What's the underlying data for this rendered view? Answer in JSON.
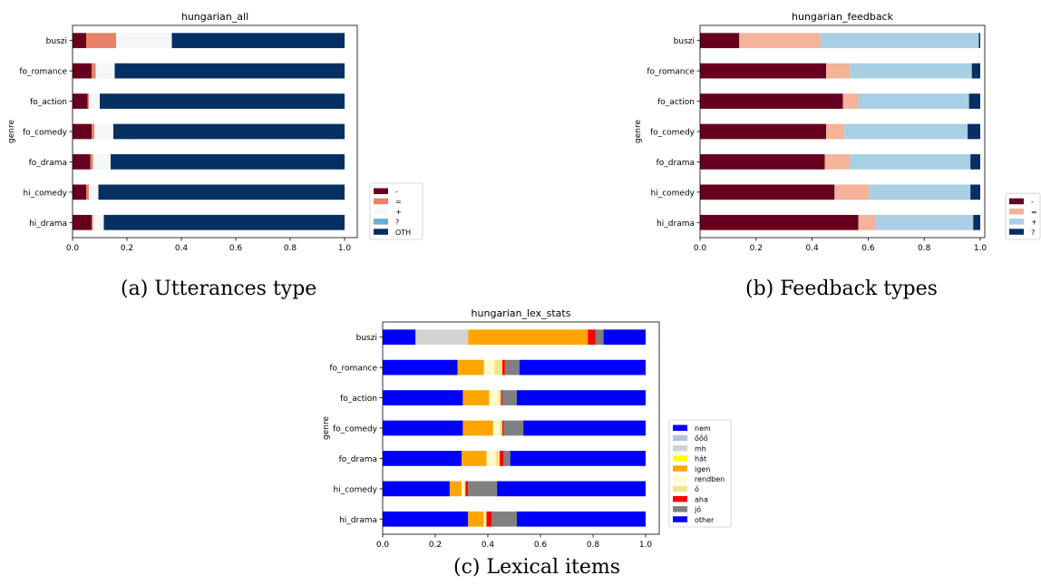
{
  "chart_data": [
    {
      "type": "bar",
      "orientation": "horizontal",
      "stacked": true,
      "title": "hungarian_all",
      "xlabel": "",
      "ylabel": "genre",
      "xlim": [
        0,
        1.0
      ],
      "xticks": [
        "0.0",
        "0.2",
        "0.4",
        "0.6",
        "0.8",
        "1.0"
      ],
      "legend_position": "outside-right-bottom",
      "grid": false,
      "categories": [
        "buszi",
        "fo_romance",
        "fo_action",
        "fo_comedy",
        "fo_drama",
        "hi_comedy",
        "hi_drama"
      ],
      "series": [
        {
          "name": "-",
          "color": "#67001f",
          "values": [
            0.05,
            0.07,
            0.055,
            0.07,
            0.065,
            0.05,
            0.07
          ]
        },
        {
          "name": "=",
          "color": "#e58268",
          "values": [
            0.11,
            0.015,
            0.005,
            0.01,
            0.01,
            0.01,
            0.005
          ]
        },
        {
          "name": "+",
          "color": "#f5f6f7",
          "values": [
            0.205,
            0.07,
            0.04,
            0.07,
            0.065,
            0.035,
            0.04
          ]
        },
        {
          "name": "?",
          "color": "#6baed6",
          "values": [
            0.0,
            0.0,
            0.0,
            0.0,
            0.0,
            0.0,
            0.0
          ]
        },
        {
          "name": "OTH",
          "color": "#053061",
          "values": [
            0.635,
            0.845,
            0.9,
            0.85,
            0.86,
            0.905,
            0.885
          ]
        }
      ],
      "caption": "(a) Utterances type"
    },
    {
      "type": "bar",
      "orientation": "horizontal",
      "stacked": true,
      "title": "hungarian_feedback",
      "xlabel": "",
      "ylabel": "genre",
      "xlim": [
        0,
        1.0
      ],
      "xticks": [
        "0.0",
        "0.2",
        "0.4",
        "0.6",
        "0.8",
        "1.0"
      ],
      "legend_position": "outside-right-bottom",
      "grid": false,
      "categories": [
        "buszi",
        "fo_romance",
        "fo_action",
        "fo_comedy",
        "fo_drama",
        "hi_comedy",
        "hi_drama"
      ],
      "series": [
        {
          "name": "-",
          "color": "#67001f",
          "values": [
            0.14,
            0.45,
            0.51,
            0.45,
            0.445,
            0.48,
            0.565
          ]
        },
        {
          "name": "=",
          "color": "#f4b39a",
          "values": [
            0.29,
            0.085,
            0.055,
            0.065,
            0.09,
            0.125,
            0.06
          ]
        },
        {
          "name": "+",
          "color": "#a8cfe3",
          "values": [
            0.565,
            0.435,
            0.395,
            0.44,
            0.43,
            0.36,
            0.35
          ]
        },
        {
          "name": "?",
          "color": "#053061",
          "values": [
            0.005,
            0.03,
            0.04,
            0.045,
            0.035,
            0.035,
            0.025
          ]
        }
      ],
      "caption": "(b) Feedback types"
    },
    {
      "type": "bar",
      "orientation": "horizontal",
      "stacked": true,
      "title": "hungarian_lex_stats",
      "xlabel": "",
      "ylabel": "genre",
      "xlim": [
        0,
        1.0
      ],
      "xticks": [
        "0.0",
        "0.2",
        "0.4",
        "0.6",
        "0.8",
        "1.0"
      ],
      "legend_position": "outside-right-bottom",
      "grid": false,
      "categories": [
        "buszi",
        "fo_romance",
        "fo_action",
        "fo_comedy",
        "fo_drama",
        "hi_comedy",
        "hi_drama"
      ],
      "series": [
        {
          "name": "nem",
          "color": "#0000ff",
          "values": [
            0.125,
            0.285,
            0.305,
            0.305,
            0.3,
            0.255,
            0.325
          ]
        },
        {
          "name": "őőő",
          "color": "#b0c4de",
          "values": [
            0.0,
            0.0,
            0.0,
            0.0,
            0.0,
            0.0,
            0.0
          ]
        },
        {
          "name": "mh",
          "color": "#d3d3d3",
          "values": [
            0.2,
            0.0,
            0.0,
            0.0,
            0.0,
            0.0,
            0.0
          ]
        },
        {
          "name": "hát",
          "color": "#ffff00",
          "values": [
            0.0,
            0.0,
            0.0,
            0.0,
            0.0,
            0.0,
            0.0
          ]
        },
        {
          "name": "igen",
          "color": "#ffa500",
          "values": [
            0.455,
            0.1,
            0.1,
            0.115,
            0.095,
            0.045,
            0.06
          ]
        },
        {
          "name": "rendben",
          "color": "#fffacd",
          "values": [
            0.0,
            0.04,
            0.035,
            0.025,
            0.035,
            0.01,
            0.005
          ]
        },
        {
          "name": "ó",
          "color": "#f0e68c",
          "values": [
            0.0,
            0.03,
            0.01,
            0.01,
            0.015,
            0.005,
            0.005
          ]
        },
        {
          "name": "aha",
          "color": "#ff0000",
          "values": [
            0.03,
            0.01,
            0.005,
            0.005,
            0.015,
            0.01,
            0.02
          ]
        },
        {
          "name": "jó",
          "color": "#808080",
          "values": [
            0.03,
            0.055,
            0.055,
            0.075,
            0.025,
            0.11,
            0.095
          ]
        },
        {
          "name": "other",
          "color": "#0000ff",
          "values": [
            0.16,
            0.48,
            0.49,
            0.465,
            0.515,
            0.565,
            0.49
          ]
        }
      ],
      "caption": "(c) Lexical items"
    }
  ]
}
